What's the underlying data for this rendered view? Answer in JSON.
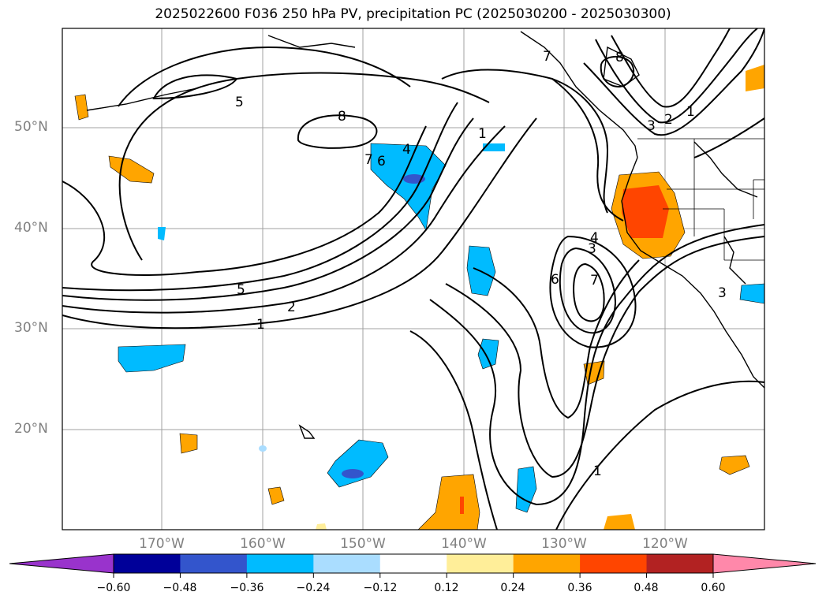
{
  "title": "2025022600 F036 250 hPa PV, precipitation PC (2025030200 - 2025030300)",
  "map": {
    "lat_labels": [
      "50°N",
      "40°N",
      "30°N",
      "20°N"
    ],
    "lon_labels": [
      "170°W",
      "160°W",
      "150°W",
      "140°W",
      "130°W",
      "120°W"
    ],
    "contour_labels": [
      "5",
      "8",
      "5",
      "2",
      "1",
      "7",
      "6",
      "4",
      "1",
      "4",
      "3",
      "6",
      "7",
      "8",
      "7",
      "3",
      "2",
      "1",
      "3",
      "1"
    ],
    "colors": {
      "land_line": "#000000",
      "grid": "#a0a0a0"
    }
  },
  "colorbar": {
    "ticks": [
      "−0.60",
      "−0.48",
      "−0.36",
      "−0.24",
      "−0.12",
      "0.12",
      "0.24",
      "0.36",
      "0.48",
      "0.60"
    ],
    "colors": [
      "#9933cc",
      "#000099",
      "#3355cc",
      "#00bbff",
      "#aaddff",
      "#ffffff",
      "#ffee99",
      "#ffa500",
      "#ff4500",
      "#b22222",
      "#ff88aa"
    ]
  }
}
